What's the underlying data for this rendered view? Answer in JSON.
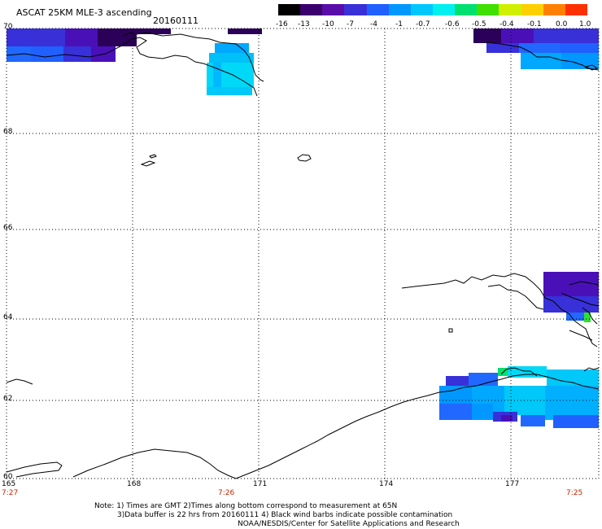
{
  "header": {
    "title": "ASCAT 25KM MLE-3 ascending",
    "date": "20160111"
  },
  "colorbar": {
    "labels": [
      "-16",
      "-13",
      "-10",
      "-7",
      "-4",
      "-1",
      "-0.7",
      "-0.6",
      "-0.5",
      "-0.4",
      "-0.1",
      "0.0",
      "1.0"
    ],
    "colors": [
      "#000000",
      "#3a006e",
      "#5a0ca8",
      "#3a30d8",
      "#2060ff",
      "#0098ff",
      "#00c8ff",
      "#00f0f0",
      "#00e070",
      "#40e000",
      "#d0f000",
      "#ffd000",
      "#ff8000",
      "#ff3000"
    ]
  },
  "map": {
    "lat_labels": [
      "70",
      "68",
      "66",
      "64",
      "62",
      "60"
    ],
    "lon_labels": [
      "165",
      "168",
      "171",
      "174",
      "177"
    ],
    "time_labels": [
      "7:27",
      "7:26",
      "7:25"
    ],
    "colors": {
      "coast": "#000000",
      "grid": "#000000",
      "dark_purple": "#2a0058",
      "purple": "#4a10b8",
      "indigo": "#3830d8",
      "blue": "#2068ff",
      "lightblue": "#00a8ff",
      "cyan": "#00d8f8",
      "green": "#30e030"
    }
  },
  "notes": {
    "line1": "Note: 1) Times are GMT 2)Times along bottom correspond to measurement at 65N",
    "line2": "3)Data buffer is 22 hrs from 20160111 4) Black wind barbs indicate possible contamination",
    "line3": "NOAA/NESDIS/Center for Satellite Applications and Research"
  }
}
